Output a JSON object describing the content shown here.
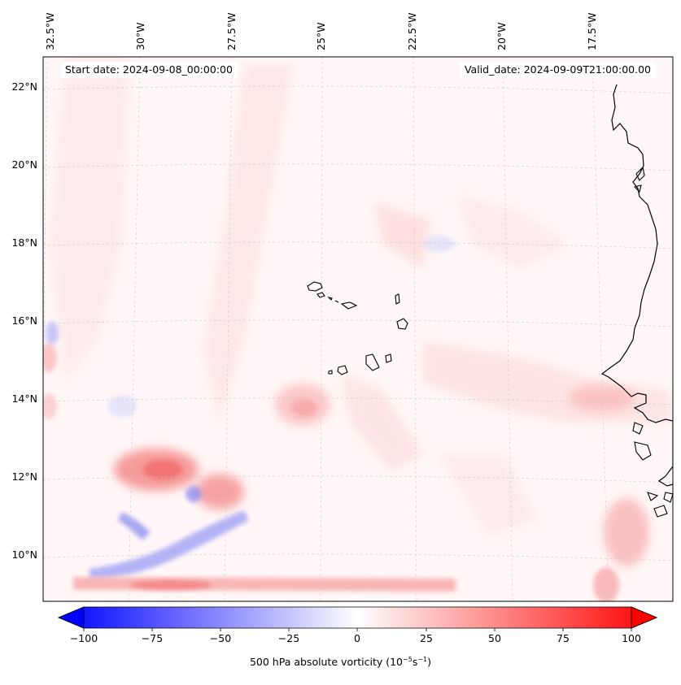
{
  "header": {
    "start_label": "Start date: 2024-09-08_00:00:00",
    "valid_label": "Valid_date: 2024-09-09T21:00:00.00"
  },
  "map": {
    "projection": "conic",
    "lon_labels": [
      "32.5°W",
      "30°W",
      "27.5°W",
      "25°W",
      "22.5°W",
      "20°W",
      "17.5°W"
    ],
    "lat_labels": [
      "22°N",
      "20°N",
      "18°N",
      "16°N",
      "14°N",
      "12°N",
      "10°N"
    ],
    "field": "500 hPa absolute vorticity",
    "features": [
      "Cabo Verde islands",
      "West African coastline (Mauritania / Senegal / Gambia / Guinea-Bissau)"
    ]
  },
  "colorbar": {
    "ticks": [
      "−100",
      "−75",
      "−50",
      "−25",
      "0",
      "25",
      "50",
      "75",
      "100"
    ],
    "title_main": "500 hPa absolute vorticity (10",
    "title_sup1": "−5",
    "title_mid": "s",
    "title_sup2": "−1",
    "title_end": ")",
    "vmin": -100,
    "vmax": 100,
    "colors": {
      "neg": "#0000ff",
      "zero": "#ffffff",
      "pos": "#ff0000"
    }
  }
}
